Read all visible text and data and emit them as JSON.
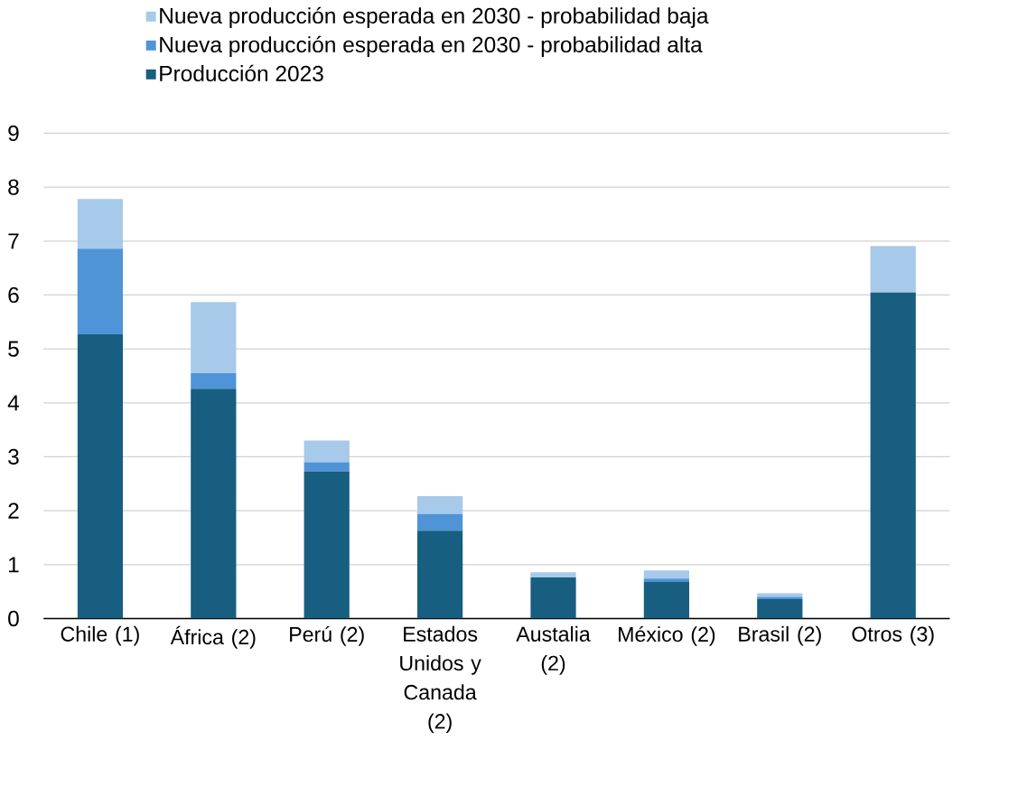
{
  "chart_data": {
    "type": "bar",
    "stacked": true,
    "categories": [
      "Chile (1)",
      "África (2)",
      "Perú (2)",
      "Estados Unidos y Canada (2)",
      "Austalia (2)",
      "México (2)",
      "Brasil (2)",
      "Otros (3)"
    ],
    "series": [
      {
        "name": "Producción 2023",
        "color": "#175e80",
        "values": [
          5.27,
          4.26,
          2.73,
          1.63,
          0.76,
          0.68,
          0.36,
          6.05
        ]
      },
      {
        "name": "Nueva producción esperada en 2030 - probabilidad alta",
        "color": "#4f94d6",
        "values": [
          1.59,
          0.29,
          0.17,
          0.31,
          0,
          0.06,
          0.04,
          0
        ]
      },
      {
        "name": "Nueva producción esperada en 2030 - probabilidad baja",
        "color": "#a7c9ea",
        "values": [
          0.92,
          1.32,
          0.4,
          0.33,
          0.1,
          0.15,
          0.07,
          0.86
        ]
      }
    ],
    "ylim": [
      0,
      9
    ],
    "yticks": [
      0,
      1,
      2,
      3,
      4,
      5,
      6,
      7,
      8,
      9
    ],
    "grid": "y",
    "legend": "top"
  }
}
